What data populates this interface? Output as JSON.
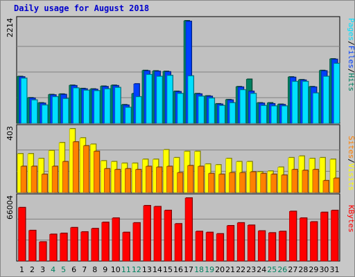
{
  "chart_data": {
    "type": "bar",
    "title": "Daily usage for August 2018",
    "categories": [
      "1",
      "2",
      "3",
      "4",
      "5",
      "6",
      "7",
      "8",
      "9",
      "10",
      "11",
      "12",
      "13",
      "14",
      "15",
      "16",
      "17",
      "18",
      "19",
      "20",
      "21",
      "22",
      "23",
      "24",
      "25",
      "26",
      "27",
      "28",
      "29",
      "30",
      "31"
    ],
    "weekend_days": [
      "4",
      "5",
      "11",
      "12",
      "18",
      "19",
      "25",
      "26"
    ],
    "panels": [
      {
        "name": "top",
        "ymax": 2214,
        "ymax_label": "2214",
        "legend": [
          {
            "text": "Pages",
            "color": "#00e0ff"
          },
          {
            "text": "/",
            "color": "#000000"
          },
          {
            "text": "Files",
            "color": "#0040ff"
          },
          {
            "text": "/",
            "color": "#000000"
          },
          {
            "text": "Hits",
            "color": "#008060"
          }
        ],
        "series": [
          {
            "name": "Hits",
            "color": "#008060",
            "values": [
              1010,
              550,
              440,
              620,
              630,
              820,
              750,
              740,
              800,
              820,
              400,
              640,
              1140,
              1130,
              1120,
              690,
              2214,
              640,
              590,
              420,
              510,
              790,
              950,
              440,
              440,
              410,
              1000,
              940,
              790,
              1140,
              1390
            ]
          },
          {
            "name": "Files",
            "color": "#0040ff",
            "values": [
              1000,
              540,
              430,
              610,
              620,
              810,
              740,
              730,
              790,
              810,
              390,
              850,
              1130,
              1120,
              1110,
              680,
              2200,
              630,
              580,
              410,
              500,
              780,
              690,
              430,
              420,
              400,
              990,
              930,
              780,
              1130,
              1380
            ]
          },
          {
            "name": "Pages",
            "color": "#00e0ff",
            "values": [
              970,
              500,
              390,
              570,
              530,
              760,
              710,
              700,
              740,
              770,
              340,
              570,
              1050,
              1010,
              1030,
              640,
              1020,
              580,
              540,
              380,
              440,
              720,
              640,
              380,
              370,
              370,
              900,
              900,
              650,
              1010,
              1290
            ]
          }
        ]
      },
      {
        "name": "middle",
        "ymax": 403,
        "ymax_label": "403",
        "legend": [
          {
            "text": "Sites",
            "color": "#ff8000"
          },
          {
            "text": "/",
            "color": "#000000"
          },
          {
            "text": "Visits",
            "color": "#ffff00"
          }
        ],
        "series": [
          {
            "name": "Visits",
            "color": "#ffff00",
            "values": [
              245,
              245,
              215,
              265,
              315,
              403,
              345,
              305,
              200,
              195,
              185,
              185,
              210,
              210,
              270,
              220,
              260,
              260,
              180,
              175,
              215,
              195,
              195,
              130,
              135,
              160,
              220,
              230,
              215,
              220,
              210
            ]
          },
          {
            "name": "Sites",
            "color": "#ff8000",
            "values": [
              165,
              165,
              115,
              165,
              195,
              320,
              295,
              260,
              150,
              145,
              150,
              145,
              165,
              160,
              165,
              125,
              170,
              165,
              120,
              115,
              125,
              125,
              130,
              120,
              115,
              110,
              145,
              140,
              145,
              75,
              90
            ]
          }
        ]
      },
      {
        "name": "bottom",
        "ymax": 66004,
        "ymax_label": "66004",
        "legend": [
          {
            "text": "KBytes",
            "color": "#ff0000"
          }
        ],
        "series": [
          {
            "name": "KBytes",
            "color": "#ff0000",
            "values": [
              56000,
              32000,
              20000,
              28000,
              29000,
              35000,
              30500,
              34000,
              40500,
              45000,
              30000,
              40000,
              58000,
              57000,
              53000,
              39000,
              66004,
              31000,
              30000,
              28500,
              37000,
              40000,
              37500,
              31500,
              29500,
              31000,
              52000,
              45000,
              41000,
              51000,
              53000
            ]
          }
        ]
      }
    ]
  }
}
